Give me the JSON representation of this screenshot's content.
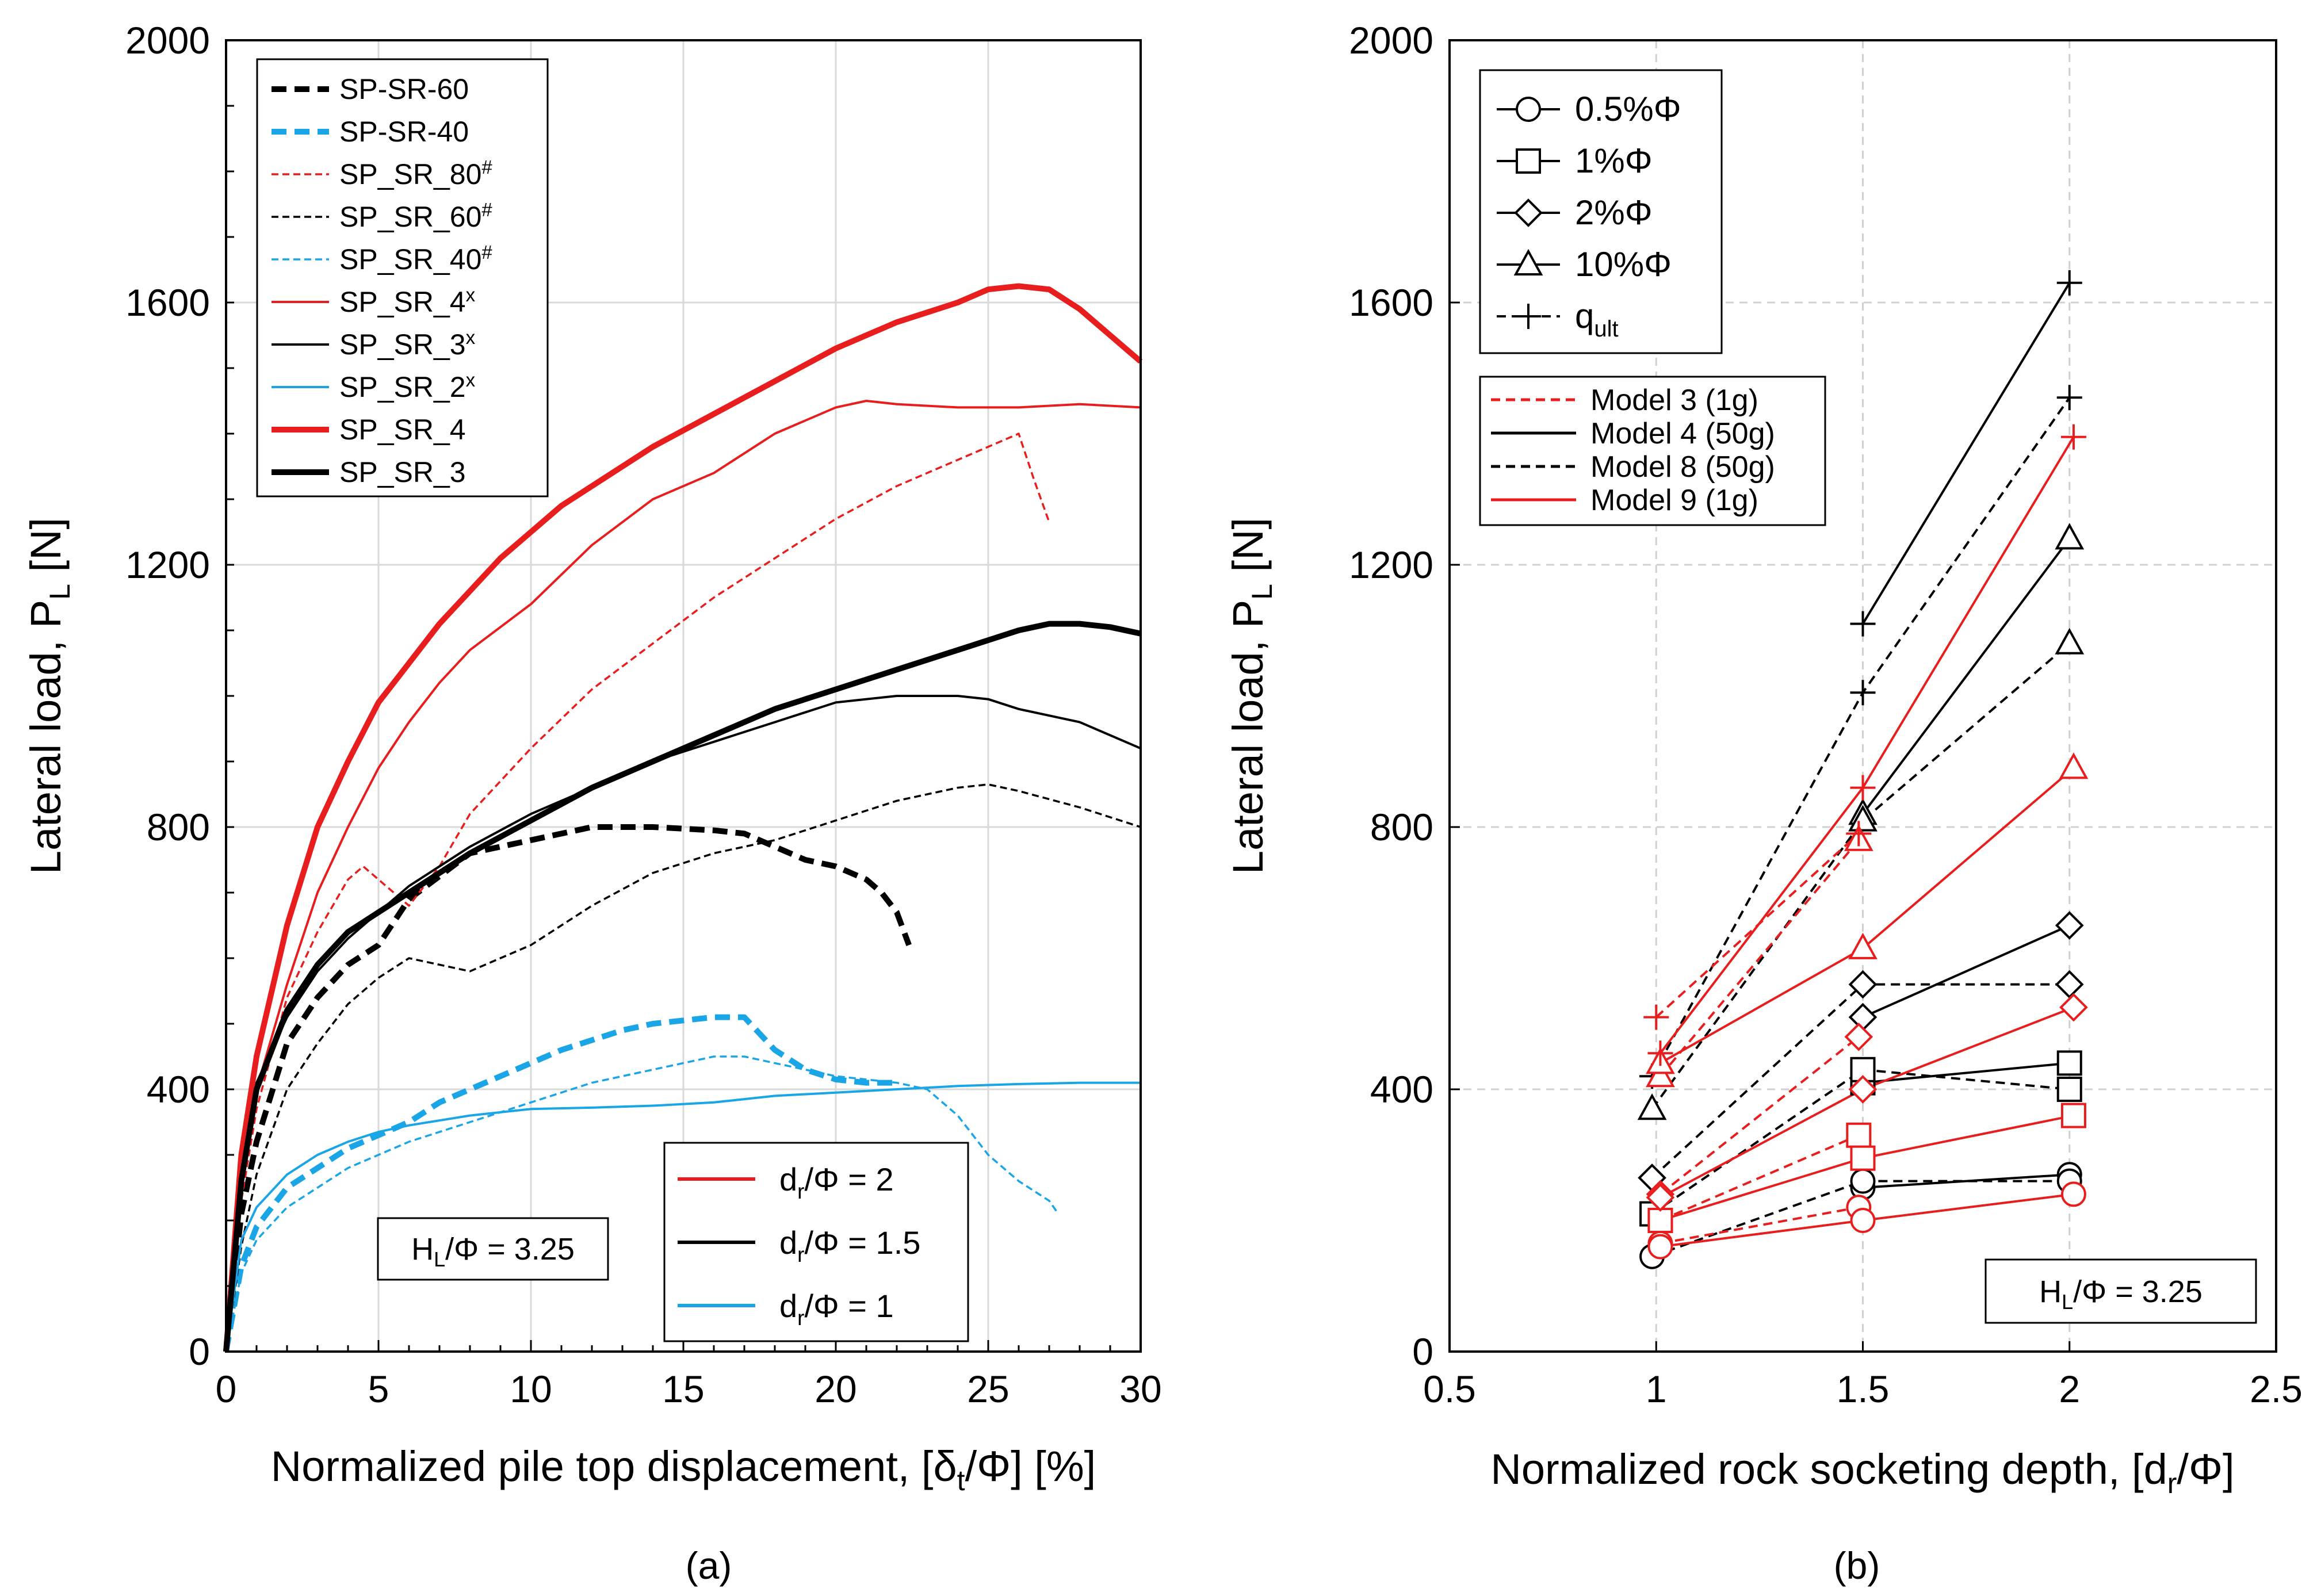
{
  "figure": {
    "caption_a": "(a)",
    "caption_b": "(b)"
  },
  "chart_data": [
    {
      "type": "line",
      "panel": "a",
      "title": "",
      "xlabel": "Normalized pile top displacement, [δt/Φ] [%]",
      "ylabel": "Lateral load, PL [N]",
      "xlim": [
        0,
        30
      ],
      "ylim": [
        0,
        2000
      ],
      "xticks": [
        "0",
        "5",
        "10",
        "15",
        "20",
        "25",
        "30"
      ],
      "yticks": [
        "0",
        "400",
        "800",
        "1200",
        "1600",
        "2000"
      ],
      "grid": true,
      "annotation": "HL/Φ = 3.25",
      "legend_position": "top-left",
      "series": [
        {
          "name": "SP-SR-60",
          "color": "#000000",
          "style": "thick-dashed",
          "x": [
            0,
            0.5,
            1,
            2,
            3,
            4,
            5,
            6,
            8,
            10,
            12,
            14,
            16,
            17,
            18,
            19,
            20,
            21,
            21.5,
            22,
            22.4
          ],
          "y": [
            0,
            210,
            320,
            470,
            540,
            590,
            620,
            690,
            760,
            780,
            800,
            800,
            795,
            790,
            770,
            750,
            740,
            720,
            700,
            670,
            620
          ]
        },
        {
          "name": "SP-SR-40",
          "color": "#1aa6e6",
          "style": "thick-dashed",
          "x": [
            0,
            0.5,
            1,
            2,
            3,
            4,
            5,
            6,
            7,
            8,
            9,
            10,
            11,
            12,
            13,
            14,
            15,
            16,
            17,
            18,
            19,
            20,
            21,
            22
          ],
          "y": [
            0,
            130,
            190,
            250,
            280,
            310,
            330,
            350,
            380,
            400,
            420,
            440,
            460,
            475,
            490,
            500,
            505,
            510,
            510,
            460,
            430,
            415,
            410,
            410
          ]
        },
        {
          "name": "SP_SR_80#",
          "color": "#e81e1e",
          "style": "thin-dashed",
          "x": [
            0,
            0.5,
            1,
            2,
            3,
            4,
            4.5,
            5,
            6,
            7,
            8,
            10,
            12,
            14,
            16,
            18,
            20,
            22,
            24,
            26,
            26.5,
            27
          ],
          "y": [
            0,
            230,
            370,
            540,
            640,
            720,
            740,
            720,
            680,
            740,
            820,
            920,
            1010,
            1080,
            1150,
            1210,
            1270,
            1320,
            1360,
            1400,
            1330,
            1265
          ]
        },
        {
          "name": "SP_SR_60#",
          "color": "#000000",
          "style": "thin-dashed",
          "x": [
            0,
            0.5,
            1,
            2,
            3,
            4,
            5,
            6,
            8,
            10,
            12,
            14,
            16,
            18,
            20,
            22,
            24,
            25,
            26,
            28,
            30
          ],
          "y": [
            0,
            160,
            270,
            400,
            470,
            530,
            570,
            600,
            580,
            620,
            680,
            730,
            760,
            780,
            810,
            840,
            860,
            865,
            855,
            830,
            800
          ]
        },
        {
          "name": "SP_SR_40#",
          "color": "#1aa6e6",
          "style": "thin-dashed",
          "x": [
            0,
            0.5,
            1,
            2,
            4,
            6,
            8,
            10,
            12,
            14,
            16,
            17,
            18,
            20,
            22,
            23,
            24,
            25,
            26,
            27,
            27.3
          ],
          "y": [
            0,
            120,
            170,
            220,
            280,
            320,
            350,
            380,
            410,
            430,
            450,
            450,
            440,
            420,
            410,
            400,
            360,
            300,
            260,
            230,
            210
          ]
        },
        {
          "name": "SP_SR_4x",
          "color": "#e81e1e",
          "style": "thin-solid",
          "x": [
            0,
            0.5,
            1,
            2,
            3,
            4,
            5,
            6,
            7,
            8,
            10,
            12,
            14,
            16,
            18,
            20,
            21,
            22,
            24,
            26,
            28,
            30
          ],
          "y": [
            0,
            260,
            400,
            560,
            700,
            800,
            890,
            960,
            1020,
            1070,
            1140,
            1230,
            1300,
            1340,
            1400,
            1440,
            1450,
            1445,
            1440,
            1440,
            1445,
            1440
          ]
        },
        {
          "name": "SP_SR_3x",
          "color": "#000000",
          "style": "thin-solid",
          "x": [
            0,
            0.5,
            1,
            2,
            3,
            4,
            5,
            6,
            8,
            10,
            12,
            14,
            16,
            18,
            20,
            22,
            24,
            25,
            26,
            28,
            30
          ],
          "y": [
            0,
            280,
            410,
            510,
            580,
            630,
            670,
            710,
            770,
            820,
            860,
            900,
            930,
            960,
            990,
            1000,
            1000,
            995,
            980,
            960,
            920
          ]
        },
        {
          "name": "SP_SR_2x",
          "color": "#1aa6e6",
          "style": "thin-solid",
          "x": [
            0,
            0.5,
            1,
            2,
            3,
            4,
            5,
            6,
            8,
            10,
            12,
            14,
            16,
            18,
            20,
            22,
            24,
            26,
            28,
            30
          ],
          "y": [
            0,
            170,
            220,
            270,
            300,
            320,
            335,
            345,
            360,
            370,
            372,
            375,
            380,
            390,
            395,
            400,
            405,
            408,
            410,
            410
          ]
        },
        {
          "name": "SP_SR_4",
          "color": "#e81e1e",
          "style": "thick-solid",
          "x": [
            0,
            0.5,
            1,
            2,
            3,
            4,
            5,
            6,
            7,
            8,
            9,
            10,
            11,
            12,
            14,
            16,
            18,
            20,
            22,
            24,
            25,
            26,
            27,
            28,
            29,
            30
          ],
          "y": [
            0,
            300,
            450,
            650,
            800,
            900,
            990,
            1050,
            1110,
            1160,
            1210,
            1250,
            1290,
            1320,
            1380,
            1430,
            1480,
            1530,
            1570,
            1600,
            1620,
            1625,
            1620,
            1590,
            1550,
            1510
          ]
        },
        {
          "name": "SP_SR_3",
          "color": "#000000",
          "style": "thick-solid",
          "x": [
            0,
            0.5,
            1,
            2,
            3,
            4,
            5,
            6,
            8,
            10,
            12,
            14,
            16,
            18,
            20,
            22,
            24,
            26,
            27,
            28,
            29,
            30
          ],
          "y": [
            0,
            260,
            400,
            520,
            590,
            640,
            670,
            700,
            760,
            810,
            860,
            900,
            940,
            980,
            1010,
            1040,
            1070,
            1100,
            1110,
            1110,
            1105,
            1095
          ]
        }
      ],
      "legend2": [
        {
          "label": "dr/Φ = 2",
          "color": "#e81e1e"
        },
        {
          "label": "dr/Φ = 1.5",
          "color": "#000000"
        },
        {
          "label": "dr/Φ = 1",
          "color": "#1aa6e6"
        }
      ]
    },
    {
      "type": "line",
      "panel": "b",
      "title": "",
      "xlabel": "Normalized rock socketing depth, [dr/Φ]",
      "ylabel": "Lateral load, PL [N]",
      "xlim": [
        0.5,
        2.5
      ],
      "ylim": [
        0,
        2000
      ],
      "xticks": [
        "0.5",
        "1",
        "1.5",
        "2",
        "2.5"
      ],
      "yticks": [
        "0",
        "400",
        "800",
        "1200",
        "1600",
        "2000"
      ],
      "grid": true,
      "annotation": "HL/Φ = 3.25",
      "marker_legend": [
        {
          "label": "0.5%Φ",
          "marker": "circle"
        },
        {
          "label": "1%Φ",
          "marker": "square"
        },
        {
          "label": "2%Φ",
          "marker": "diamond"
        },
        {
          "label": "10%Φ",
          "marker": "triangle"
        },
        {
          "label": "qult",
          "marker": "plus"
        }
      ],
      "model_legend": [
        {
          "label": "Model 3 (1g)",
          "color": "#e81e1e",
          "style": "dashed"
        },
        {
          "label": "Model 4 (50g)",
          "color": "#000000",
          "style": "solid"
        },
        {
          "label": "Model 8 (50g)",
          "color": "#000000",
          "style": "dashed"
        },
        {
          "label": "Model 9 (1g)",
          "color": "#e81e1e",
          "style": "solid"
        }
      ],
      "x": [
        1,
        1.5,
        2
      ],
      "series": [
        {
          "model": "Model 4 (50g)",
          "marker": "circle",
          "color": "#000000",
          "style": "solid",
          "x": [
            1.5,
            2
          ],
          "y": [
            250,
            270
          ]
        },
        {
          "model": "Model 4 (50g)",
          "marker": "square",
          "color": "#000000",
          "style": "solid",
          "x": [
            1.5,
            2
          ],
          "y": [
            410,
            440
          ]
        },
        {
          "model": "Model 4 (50g)",
          "marker": "diamond",
          "color": "#000000",
          "style": "solid",
          "x": [
            1.5,
            2
          ],
          "y": [
            510,
            650
          ]
        },
        {
          "model": "Model 4 (50g)",
          "marker": "triangle",
          "color": "#000000",
          "style": "solid",
          "x": [
            1.5,
            2
          ],
          "y": [
            820,
            1240
          ]
        },
        {
          "model": "Model 4 (50g)",
          "marker": "plus",
          "color": "#000000",
          "style": "solid",
          "x": [
            1.5,
            2
          ],
          "y": [
            1110,
            1630
          ]
        },
        {
          "model": "Model 8 (50g)",
          "marker": "circle",
          "color": "#000000",
          "style": "dashed",
          "x": [
            0.99,
            1.5,
            2
          ],
          "y": [
            145,
            260,
            260
          ]
        },
        {
          "model": "Model 8 (50g)",
          "marker": "square",
          "color": "#000000",
          "style": "dashed",
          "x": [
            0.99,
            1.5,
            2
          ],
          "y": [
            210,
            430,
            400
          ]
        },
        {
          "model": "Model 8 (50g)",
          "marker": "diamond",
          "color": "#000000",
          "style": "dashed",
          "x": [
            0.99,
            1.5,
            2
          ],
          "y": [
            265,
            560,
            560
          ]
        },
        {
          "model": "Model 8 (50g)",
          "marker": "triangle",
          "color": "#000000",
          "style": "dashed",
          "x": [
            0.99,
            1.5,
            2
          ],
          "y": [
            370,
            810,
            1080
          ]
        },
        {
          "model": "Model 8 (50g)",
          "marker": "plus",
          "color": "#000000",
          "style": "dashed",
          "x": [
            0.99,
            1.5,
            2
          ],
          "y": [
            420,
            1005,
            1455
          ]
        },
        {
          "model": "Model 3 (1g)",
          "marker": "circle",
          "color": "#e81e1e",
          "style": "dashed",
          "x": [
            1.01,
            1.49
          ],
          "y": [
            165,
            220
          ]
        },
        {
          "model": "Model 3 (1g)",
          "marker": "square",
          "color": "#e81e1e",
          "style": "dashed",
          "x": [
            1.01,
            1.49
          ],
          "y": [
            200,
            330
          ]
        },
        {
          "model": "Model 3 (1g)",
          "marker": "diamond",
          "color": "#e81e1e",
          "style": "dashed",
          "x": [
            1.01,
            1.49
          ],
          "y": [
            240,
            480
          ]
        },
        {
          "model": "Model 3 (1g)",
          "marker": "triangle",
          "color": "#e81e1e",
          "style": "dashed",
          "x": [
            1.01,
            1.49
          ],
          "y": [
            420,
            780
          ]
        },
        {
          "model": "Model 3 (1g)",
          "marker": "plus",
          "color": "#e81e1e",
          "style": "dashed",
          "x": [
            1.0,
            1.49
          ],
          "y": [
            510,
            790
          ]
        },
        {
          "model": "Model 9 (1g)",
          "marker": "circle",
          "color": "#e81e1e",
          "style": "solid",
          "x": [
            1.01,
            1.5,
            2.01
          ],
          "y": [
            160,
            200,
            240
          ]
        },
        {
          "model": "Model 9 (1g)",
          "marker": "square",
          "color": "#e81e1e",
          "style": "solid",
          "x": [
            1.01,
            1.5,
            2.01
          ],
          "y": [
            200,
            295,
            360
          ]
        },
        {
          "model": "Model 9 (1g)",
          "marker": "diamond",
          "color": "#e81e1e",
          "style": "solid",
          "x": [
            1.01,
            1.5,
            2.01
          ],
          "y": [
            235,
            400,
            525
          ]
        },
        {
          "model": "Model 9 (1g)",
          "marker": "triangle",
          "color": "#e81e1e",
          "style": "solid",
          "x": [
            1.01,
            1.5,
            2.01
          ],
          "y": [
            440,
            615,
            890
          ]
        },
        {
          "model": "Model 9 (1g)",
          "marker": "plus",
          "color": "#e81e1e",
          "style": "solid",
          "x": [
            1.01,
            1.5,
            2.01
          ],
          "y": [
            455,
            860,
            1395
          ]
        }
      ]
    }
  ]
}
